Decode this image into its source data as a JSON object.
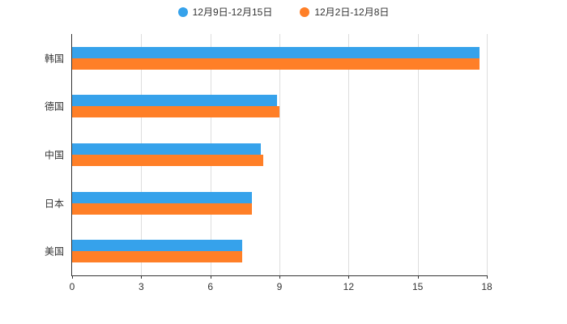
{
  "chart_data": {
    "type": "bar",
    "orientation": "horizontal",
    "title": "",
    "xlabel": "",
    "ylabel": "",
    "categories": [
      "韩国",
      "德国",
      "中国",
      "日本",
      "美国"
    ],
    "series": [
      {
        "name": "12月9日-12月15日",
        "color": "#36A2EB",
        "values": [
          17.7,
          8.9,
          8.2,
          7.8,
          7.4
        ]
      },
      {
        "name": "12月2日-12月8日",
        "color": "#FF7F27",
        "values": [
          17.7,
          9.0,
          8.3,
          7.8,
          7.4
        ]
      }
    ],
    "xlim": [
      0,
      18
    ],
    "xticks": [
      0,
      3,
      6,
      9,
      12,
      15,
      18
    ],
    "grid": true,
    "legend_position": "top",
    "background_color": "#ffffff",
    "text_color": "#333333",
    "gridline_color": "#dddddd"
  }
}
